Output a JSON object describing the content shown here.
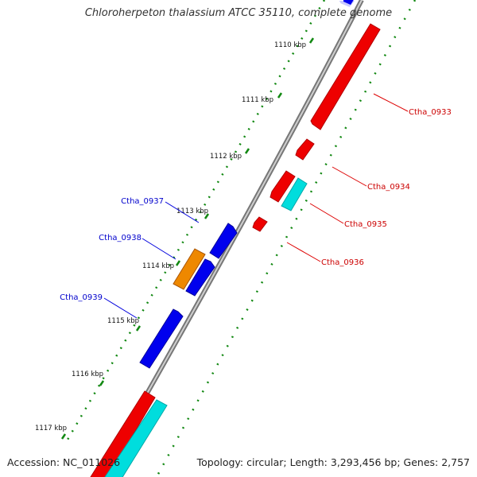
{
  "header": {
    "title": "Chloroherpeton thalassium ATCC 35110, complete genome"
  },
  "footer": {
    "accession": "Accession: NC_011026",
    "summary": "Topology: circular; Length: 3,293,456 bp; Genes: 2,757"
  },
  "ticks": [
    "1110 kbp",
    "1111 kbp",
    "1112 kbp",
    "1113 kbp",
    "1114 kbp",
    "1115 kbp",
    "1116 kbp",
    "1117 kbp"
  ],
  "genes_right": [
    "Ctha_0933",
    "Ctha_0934",
    "Ctha_0935",
    "Ctha_0936"
  ],
  "genes_left": [
    "Ctha_0937",
    "Ctha_0938",
    "Ctha_0939"
  ],
  "colors": {
    "forward_cds": "#0000ee",
    "reverse_cds": "#ee0000",
    "rna": "#00dddd",
    "other": "#ee8800",
    "dots": "#118811",
    "backbone": "#888888",
    "right_label": "#cc0000",
    "left_label": "#0000cc"
  }
}
